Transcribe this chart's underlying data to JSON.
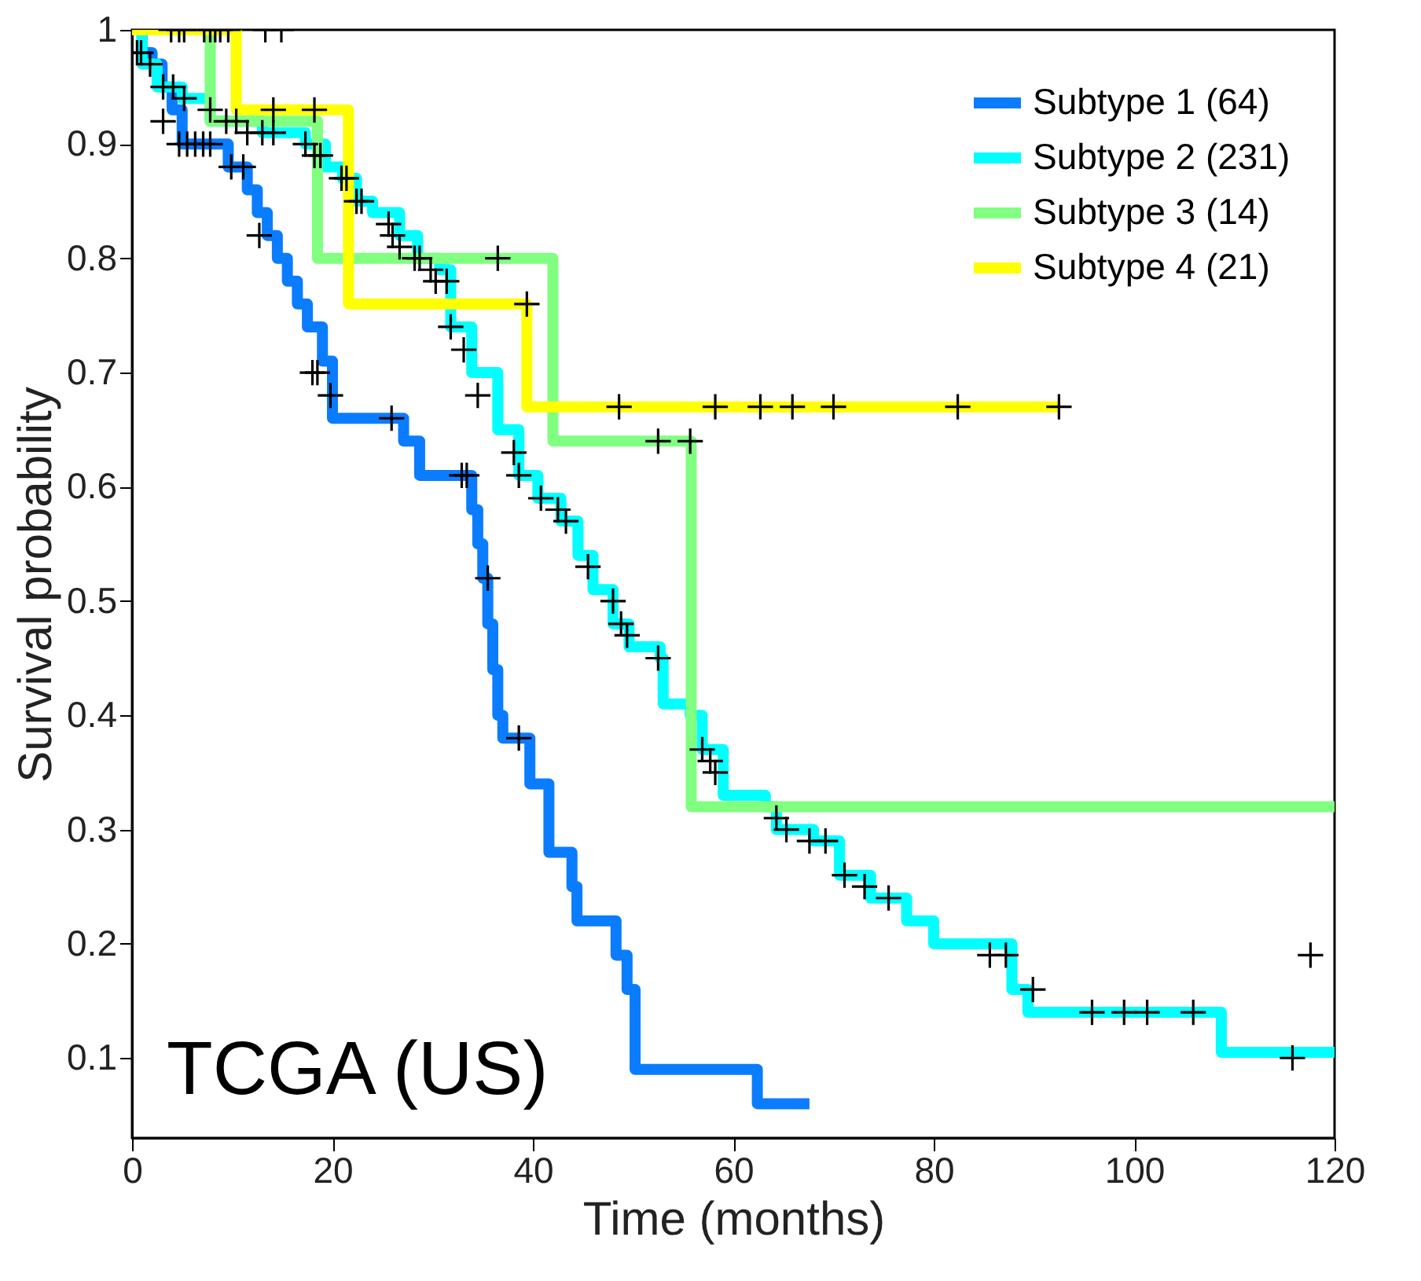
{
  "chart_data": {
    "type": "step",
    "xlabel": "Time (months)",
    "ylabel": "Survival probability",
    "xlim": [
      0,
      120
    ],
    "xticks": [
      0,
      20,
      40,
      60,
      80,
      100,
      120
    ],
    "ylim": [
      0.03,
      1
    ],
    "yticks": [
      0.1,
      0.2,
      0.3,
      0.4,
      0.5,
      0.6,
      0.7,
      0.8,
      0.9,
      1
    ],
    "legend": "top right",
    "line_style": "solid",
    "annotations": [
      "TCGA (US)"
    ],
    "series": [
      {
        "name": "Subtype 1 (64)",
        "color": "#0a7cff",
        "x": [
          0,
          1,
          2,
          3,
          4,
          5,
          9.6,
          11.5,
          12.5,
          13.5,
          14.5,
          15.5,
          16.5,
          17.5,
          19,
          20,
          27.1,
          28.7,
          33.9,
          34.5,
          35,
          35.5,
          36,
          36.5,
          37,
          39.7,
          41.6,
          43.9,
          44.4,
          48.3,
          49.4,
          50.2,
          62.4,
          67.6
        ],
        "values": [
          1,
          0.98,
          0.97,
          0.95,
          0.93,
          0.9,
          0.88,
          0.86,
          0.84,
          0.82,
          0.8,
          0.78,
          0.76,
          0.74,
          0.71,
          0.66,
          0.64,
          0.61,
          0.58,
          0.55,
          0.52,
          0.48,
          0.44,
          0.4,
          0.38,
          0.34,
          0.28,
          0.25,
          0.22,
          0.19,
          0.16,
          0.09,
          0.06,
          0.06
        ]
      },
      {
        "name": "Subtype 2 (231)",
        "color": "#00ffff",
        "x": [
          0,
          1,
          2.5,
          5,
          7.8,
          13,
          17.3,
          19.3,
          21,
          22.4,
          24,
          26.7,
          28.5,
          30.7,
          31.8,
          33.9,
          36.5,
          38.6,
          40.5,
          42.8,
          44.5,
          46,
          48,
          49.6,
          52.7,
          53,
          55.7,
          56.9,
          59,
          63.2,
          64.3,
          68,
          70.6,
          73.7,
          77.3,
          80,
          87.8,
          89.4,
          91.5,
          108.7,
          120
        ],
        "values": [
          1,
          0.97,
          0.95,
          0.94,
          0.92,
          0.91,
          0.9,
          0.88,
          0.87,
          0.85,
          0.84,
          0.82,
          0.8,
          0.79,
          0.74,
          0.7,
          0.65,
          0.61,
          0.59,
          0.57,
          0.54,
          0.51,
          0.48,
          0.46,
          0.45,
          0.41,
          0.4,
          0.37,
          0.33,
          0.32,
          0.3,
          0.29,
          0.26,
          0.24,
          0.22,
          0.2,
          0.16,
          0.14,
          0.14,
          0.105,
          0.105
        ]
      },
      {
        "name": "Subtype 3 (14)",
        "color": "#80ff80",
        "x": [
          0,
          7.8,
          18.5,
          42,
          55.8,
          120
        ],
        "values": [
          1,
          0.92,
          0.8,
          0.64,
          0.32,
          0.32
        ]
      },
      {
        "name": "Subtype 4 (21)",
        "color": "#ffff00",
        "x": [
          0,
          10.4,
          21.6,
          39.4,
          92.5
        ],
        "values": [
          1,
          0.93,
          0.76,
          0.67,
          0.67
        ]
      },
      {
        "color": "#000000",
        "type": "scatter",
        "marker": "cross",
        "x": [
          3.9,
          4.7,
          5.2,
          7.2,
          7.8,
          8.3,
          8.8,
          9.6,
          13.3,
          14.9,
          14.1,
          18.2,
          39.4,
          48.6,
          58.2,
          62.7,
          65.9,
          70,
          82.4,
          92.5,
          36.5,
          52.5,
          55.7,
          0.5,
          3.1,
          4.7,
          5.5,
          6.3,
          7.1,
          7.8,
          9.9,
          11.1,
          12.7,
          18,
          18.5,
          19.8,
          25.9,
          32.9,
          33.4,
          35.5,
          38.6,
          0.9,
          1.8,
          3.1,
          4.1,
          5.2,
          7.8,
          9.4,
          10.4,
          11.5,
          13,
          14.1,
          17.3,
          18.2,
          18.8,
          20.9,
          21.4,
          22.4,
          22.9,
          25.6,
          26,
          26.7,
          28.2,
          28.7,
          29.8,
          30.3,
          31.4,
          31.8,
          33.1,
          34.5,
          38.1,
          38.6,
          40.8,
          42.5,
          43.3,
          45.5,
          48,
          48.8,
          49.4,
          52.5,
          56.9,
          57.7,
          58.2,
          64.3,
          65.3,
          67.6,
          69.2,
          71.1,
          73.1,
          75.5,
          85.6,
          87.2,
          89.9,
          95.8,
          99,
          101.3,
          105.9,
          115.8,
          117.6
        ],
        "values": [
          1,
          1,
          1,
          1,
          1,
          1,
          1,
          1,
          1,
          1,
          0.93,
          0.93,
          0.76,
          0.67,
          0.67,
          0.67,
          0.67,
          0.67,
          0.67,
          0.67,
          0.8,
          0.64,
          0.64,
          0.98,
          0.92,
          0.9,
          0.9,
          0.9,
          0.9,
          0.9,
          0.88,
          0.88,
          0.82,
          0.7,
          0.7,
          0.68,
          0.66,
          0.61,
          0.61,
          0.52,
          0.38,
          0.98,
          0.97,
          0.95,
          0.95,
          0.94,
          0.93,
          0.92,
          0.92,
          0.91,
          0.91,
          0.91,
          0.9,
          0.89,
          0.89,
          0.87,
          0.87,
          0.85,
          0.85,
          0.83,
          0.82,
          0.81,
          0.8,
          0.8,
          0.79,
          0.78,
          0.78,
          0.74,
          0.72,
          0.68,
          0.63,
          0.61,
          0.59,
          0.58,
          0.57,
          0.53,
          0.5,
          0.48,
          0.47,
          0.45,
          0.37,
          0.36,
          0.35,
          0.31,
          0.3,
          0.29,
          0.29,
          0.26,
          0.25,
          0.24,
          0.19,
          0.19,
          0.16,
          0.14,
          0.14,
          0.14,
          0.14,
          0.1,
          0.19
        ]
      }
    ]
  }
}
